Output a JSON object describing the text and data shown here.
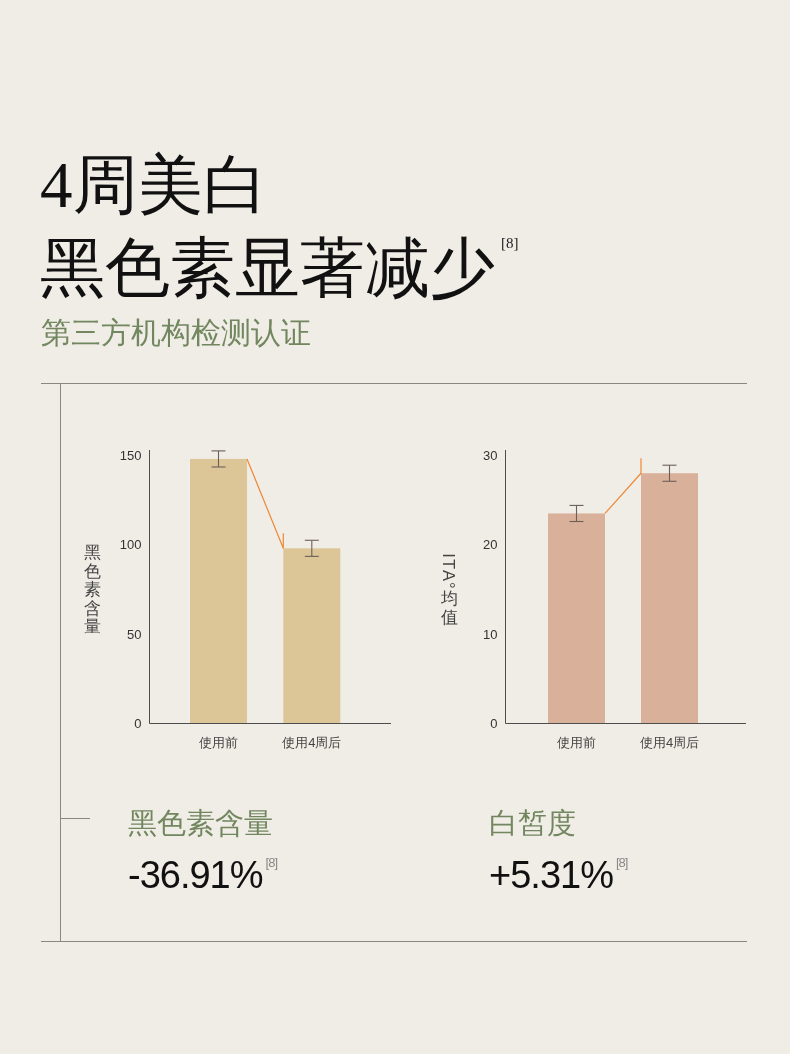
{
  "chart_data": [
    {
      "type": "other",
      "title": "4周美白",
      "subtitle": "黑色素显著减少$^{[8]}$",
      "annotations": [
        "第三方机构检测认证"
      ]
    },
    {
      "type": "bar",
      "ylabel": "黑色素含量",
      "categories": [
        "使用前",
        "使用4周后"
      ],
      "values": [
        148,
        98
      ],
      "errors": [
        4.5,
        4.5
      ],
      "color": "#dcc698",
      "ylim": [
        0,
        153
      ],
      "yticks": [
        0,
        50,
        100,
        150
      ],
      "annotations": [
        "黑色素含量",
        "-36.91%$^{[8]}$"
      ]
    },
    {
      "type": "bar",
      "ylabel": "ITA°均值",
      "categories": [
        "使用前",
        "使用4周后"
      ],
      "values": [
        23.5,
        28
      ],
      "errors": [
        0.9,
        0.9
      ],
      "color": "#d9b09a",
      "ylim": [
        0,
        30.6
      ],
      "yticks": [
        0,
        10,
        20,
        30
      ],
      "annotations": [
        "白皙度",
        "+5.31%$^{[8]}$"
      ]
    }
  ]
}
